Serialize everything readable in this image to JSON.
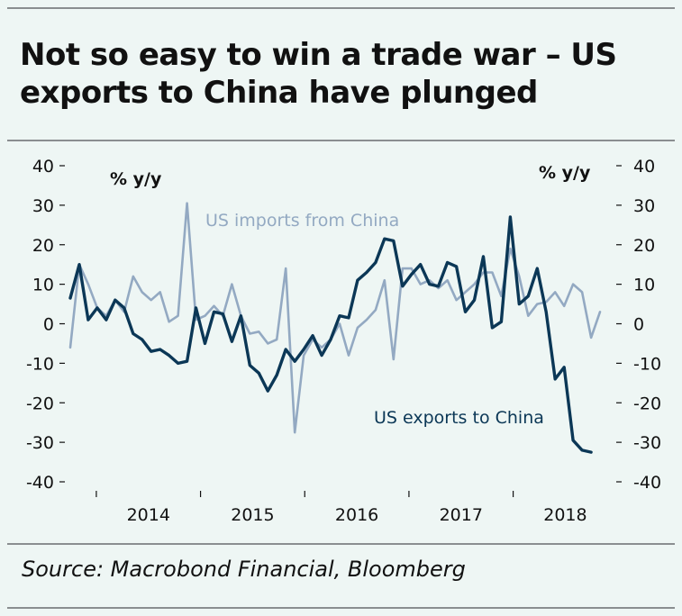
{
  "title": "Not so easy to win a trade war – US exports to China have plunged",
  "source": "Source: Macrobond Financial, Bloomberg",
  "colors": {
    "exports": "#0b3756",
    "imports": "#93a9c2",
    "axis": "#111111",
    "background": "#eef6f4"
  },
  "chart_data": {
    "type": "line",
    "title": "Not so easy to win a trade war – US exports to China have plunged",
    "ylabel_left": "% y/y",
    "ylabel_right": "% y/y",
    "ylim": [
      -40,
      40
    ],
    "yticks": [
      40,
      30,
      20,
      10,
      0,
      -10,
      -20,
      -30,
      -40
    ],
    "ytick_labels": [
      "40",
      "30",
      "20",
      "10",
      "0",
      "-10",
      "-20",
      "-30",
      "-40"
    ],
    "xtick_labels": [
      "2014",
      "2015",
      "2016",
      "2017",
      "2018"
    ],
    "year_start": 2013.75,
    "year_end": 2018.92,
    "grid": false,
    "series": [
      {
        "name": "US imports from China",
        "color": "#93a9c2",
        "values": [
          -6,
          15,
          10,
          4,
          2,
          6,
          3,
          12,
          8,
          6,
          8,
          0.5,
          2,
          30.5,
          1,
          2,
          4.5,
          2,
          10,
          2,
          -2.5,
          -2,
          -5,
          -4,
          14,
          -27.5,
          -8,
          -4,
          -6,
          -4,
          0,
          -8,
          -1,
          1,
          3.5,
          11,
          -9,
          14,
          14,
          10,
          11,
          9,
          11,
          6,
          8,
          10,
          13,
          13,
          7,
          19,
          12,
          2,
          5,
          5.5,
          8,
          4.5,
          10,
          8,
          -3.5,
          3
        ]
      },
      {
        "name": "US exports to China",
        "color": "#0b3756",
        "values": [
          6.5,
          15,
          1,
          4,
          1,
          6,
          4,
          -2.5,
          -4,
          -7,
          -6.5,
          -8,
          -10,
          -9.5,
          4,
          -5,
          3,
          2.5,
          -4.5,
          2,
          -10.5,
          -12.5,
          -17,
          -13,
          -6.5,
          -9.5,
          -6.5,
          -3,
          -8,
          -4,
          2,
          1.5,
          11,
          13,
          15.5,
          21.5,
          21,
          9.5,
          12.5,
          15,
          10,
          9.5,
          15.5,
          14.5,
          3,
          6,
          17,
          -1,
          0.5,
          27,
          5,
          7,
          14,
          3,
          -14,
          -11,
          -29.5,
          -32,
          -32.5
        ]
      }
    ]
  },
  "series_labels": {
    "imports": "US imports from China",
    "exports": "US exports to China"
  }
}
